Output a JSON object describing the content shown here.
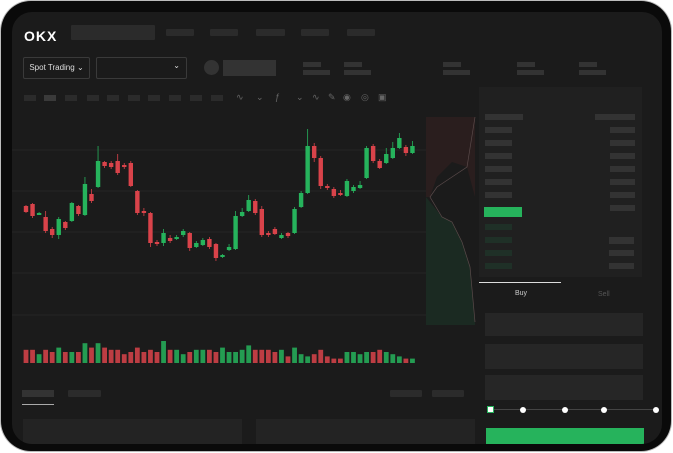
{
  "header": {
    "logo": "OKX"
  },
  "market": {
    "mode_selector": "Spot Trading",
    "pair_selector": ""
  },
  "trade_panel": {
    "tabs": [
      {
        "label": "Buy",
        "active": true
      },
      {
        "label": "Sell",
        "active": false
      }
    ]
  },
  "colors": {
    "up": "#26b35c",
    "down": "#d9434a",
    "accent_button": "#26b35c",
    "background": "#1b1b1b"
  },
  "slider": {
    "level_percent": 0,
    "stops": 5
  },
  "chart_data": {
    "type": "candlestick",
    "candles": [
      [
        95,
        89,
        96,
        88
      ],
      [
        97,
        85,
        98,
        83
      ],
      [
        86,
        88,
        89,
        86
      ],
      [
        84,
        70,
        90,
        68
      ],
      [
        72,
        66,
        74,
        63
      ],
      [
        66,
        82,
        84,
        62
      ],
      [
        79,
        73,
        80,
        71
      ],
      [
        80,
        98,
        99,
        79
      ],
      [
        95,
        87,
        96,
        85
      ],
      [
        86,
        117,
        124,
        85
      ],
      [
        107,
        100,
        112,
        98
      ],
      [
        114,
        140,
        155,
        113
      ],
      [
        139,
        135,
        140,
        133
      ],
      [
        138,
        134,
        140,
        132
      ],
      [
        140,
        128,
        147,
        126
      ],
      [
        136,
        134,
        138,
        132
      ],
      [
        138,
        115,
        140,
        114
      ],
      [
        110,
        88,
        111,
        86
      ],
      [
        90,
        88,
        93,
        85
      ],
      [
        88,
        58,
        89,
        54
      ],
      [
        59,
        58,
        61,
        55
      ],
      [
        58,
        68,
        72,
        55
      ],
      [
        63,
        60,
        66,
        58
      ],
      [
        62,
        64,
        66,
        61
      ],
      [
        66,
        70,
        72,
        64
      ],
      [
        68,
        53,
        69,
        50
      ],
      [
        54,
        58,
        60,
        53
      ],
      [
        56,
        61,
        63,
        55
      ],
      [
        62,
        54,
        64,
        52
      ],
      [
        57,
        43,
        58,
        40
      ],
      [
        44,
        46,
        47,
        43
      ],
      [
        51,
        54,
        57,
        50
      ],
      [
        52,
        85,
        90,
        51
      ],
      [
        85,
        89,
        93,
        84
      ],
      [
        90,
        101,
        106,
        89
      ],
      [
        100,
        88,
        102,
        86
      ],
      [
        92,
        66,
        95,
        64
      ],
      [
        68,
        67,
        70,
        64
      ],
      [
        72,
        67,
        74,
        66
      ],
      [
        63,
        66,
        68,
        62
      ],
      [
        68,
        65,
        69,
        63
      ],
      [
        68,
        92,
        94,
        67
      ],
      [
        94,
        108,
        110,
        93
      ],
      [
        108,
        155,
        172,
        107
      ],
      [
        155,
        143,
        158,
        139
      ],
      [
        143,
        115,
        145,
        112
      ],
      [
        115,
        113,
        117,
        111
      ],
      [
        112,
        105,
        114,
        103
      ],
      [
        108,
        106,
        111,
        105
      ],
      [
        105,
        120,
        122,
        104
      ],
      [
        110,
        114,
        116,
        108
      ],
      [
        113,
        116,
        120,
        112
      ],
      [
        123,
        153,
        155,
        122
      ],
      [
        155,
        140,
        157,
        138
      ],
      [
        140,
        133,
        142,
        132
      ],
      [
        138,
        147,
        153,
        137
      ],
      [
        143,
        153,
        159,
        142
      ],
      [
        153,
        163,
        168,
        152
      ],
      [
        154,
        148,
        156,
        145
      ],
      [
        148,
        155,
        160,
        147
      ]
    ],
    "volume": [
      6,
      6,
      4,
      6,
      5,
      7,
      5,
      5,
      5,
      9,
      7,
      9,
      7,
      6,
      6,
      4,
      5,
      7,
      5,
      6,
      5,
      10,
      6,
      6,
      4,
      5,
      6,
      6,
      6,
      5,
      7,
      5,
      5,
      6,
      8,
      6,
      6,
      6,
      5,
      6,
      3,
      7,
      4,
      3,
      4,
      6,
      3,
      2,
      2,
      5,
      5,
      4,
      5,
      5,
      6,
      5,
      4,
      3,
      2,
      2
    ]
  }
}
